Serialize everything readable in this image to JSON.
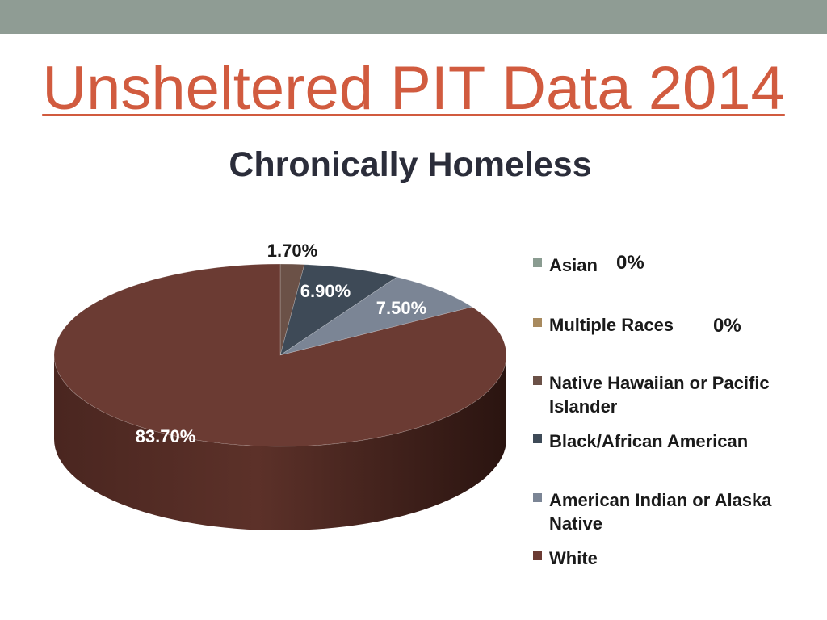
{
  "slide": {
    "title": "Unsheltered PIT Data 2014",
    "band_color": "#8f9c94",
    "title_color": "#d15b3f"
  },
  "chart_data": {
    "type": "pie",
    "title": "Chronically Homeless",
    "series": [
      {
        "category": "Asian",
        "value": 0,
        "label": "0%",
        "color": "#8a9c91"
      },
      {
        "category": "Multiple Races",
        "value": 0,
        "label": "0%",
        "color": "#a88a5f"
      },
      {
        "category": "Native Hawaiian or Pacific Islander",
        "value": 1.7,
        "label": "1.70%",
        "color": "#6b5147"
      },
      {
        "category": "Black/African American",
        "value": 6.9,
        "label": "6.90%",
        "color": "#3e4a57"
      },
      {
        "category": "American Indian or Alaska Native",
        "value": 7.5,
        "label": "7.50%",
        "color": "#7b8595"
      },
      {
        "category": "White",
        "value": 83.7,
        "label": "83.70%",
        "color": "#6b3b33"
      }
    ],
    "legend_position": "right"
  }
}
